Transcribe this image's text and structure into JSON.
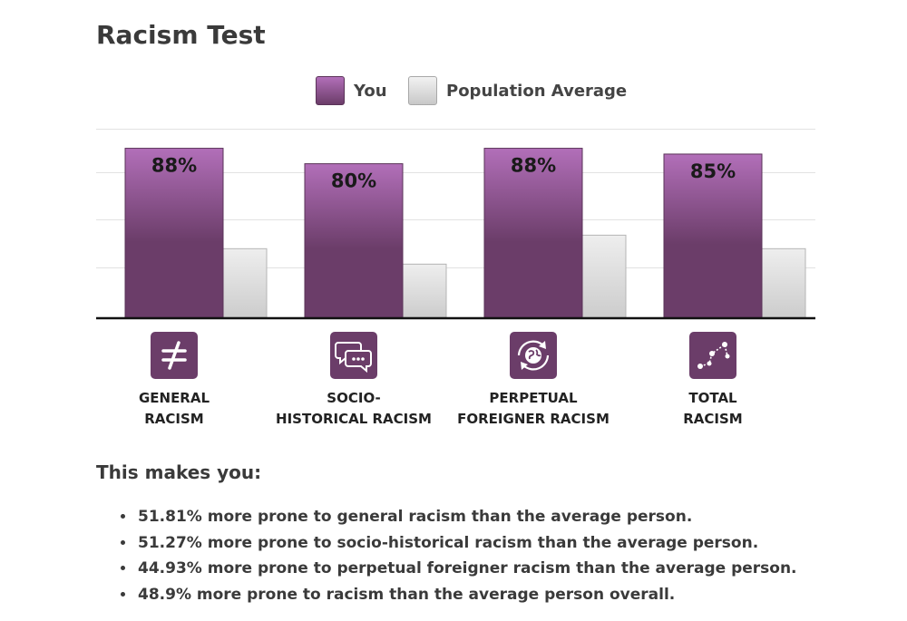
{
  "title": "Racism Test",
  "legend": {
    "you": "You",
    "population": "Population Average"
  },
  "chart_data": {
    "type": "bar",
    "title": "",
    "categories": [
      "GENERAL\nRACISM",
      "SOCIO-\nHISTORICAL RACISM",
      "PERPETUAL\nFOREIGNER RACISM",
      "TOTAL\nRACISM"
    ],
    "series": [
      {
        "name": "You",
        "values": [
          88,
          80,
          88,
          85
        ],
        "labels": [
          "88%",
          "80%",
          "88%",
          "85%"
        ],
        "color": "#6b3d69"
      },
      {
        "name": "Population Average",
        "values": [
          36,
          28,
          43,
          36
        ],
        "color": "#cccccc"
      }
    ],
    "ylim": [
      0,
      100
    ],
    "grid": true,
    "legend_position": "top"
  },
  "category_icons": [
    "not-equal-icon",
    "chat-bubbles-icon",
    "globe-cycle-icon",
    "network-graph-icon"
  ],
  "colors": {
    "accent": "#6b3d69",
    "accent_light": "#b26fb9",
    "average": "#cccccc"
  },
  "summary": {
    "heading": "This makes you:",
    "items": [
      "51.81% more prone to general racism than the average person.",
      "51.27% more prone to socio-historical racism than the average person.",
      "44.93% more prone to perpetual foreigner racism than the average person.",
      "48.9% more prone to racism than the average person overall."
    ]
  }
}
